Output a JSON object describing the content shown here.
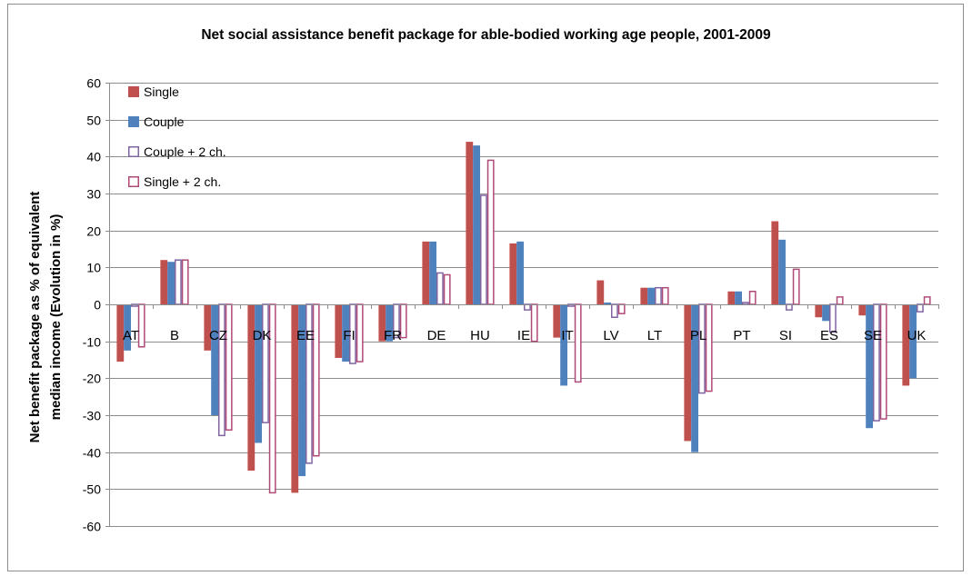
{
  "chart_data": {
    "type": "bar",
    "title": "Net social assistance benefit package for able-bodied working age people, 2001-2009",
    "ylabel_line1": "Net benefit package as % of equivalent",
    "ylabel_line2": "median income (Evolution in %)",
    "xlabel": "",
    "ylim": [
      -60,
      60
    ],
    "ytick_step": 10,
    "grid": true,
    "legend_position": "top-left",
    "categories": [
      "AT",
      "B",
      "CZ",
      "DK",
      "EE",
      "FI",
      "FR",
      "DE",
      "HU",
      "IE",
      "IT",
      "LV",
      "LT",
      "PL",
      "PT",
      "SI",
      "ES",
      "SE",
      "UK"
    ],
    "series": [
      {
        "name": "Single",
        "color": "#c0504d",
        "fill": "solid",
        "values": [
          -15.5,
          12,
          -12.5,
          -45,
          -51,
          -14.5,
          -10,
          17,
          44,
          16.5,
          -9,
          6.5,
          4.5,
          -37,
          3.5,
          22.5,
          -3.5,
          -3,
          -22
        ]
      },
      {
        "name": "Couple",
        "color": "#4f81bd",
        "fill": "solid",
        "values": [
          -12.5,
          11.5,
          -30,
          -37.5,
          -46.5,
          -15.5,
          -10,
          17,
          43,
          17,
          -22,
          0.5,
          4.5,
          -40,
          3.5,
          17.5,
          -4.5,
          -33.5,
          -20
        ]
      },
      {
        "name": "Couple + 2 ch.",
        "color": "#8064a2",
        "fill": "outline",
        "values": [
          -0.5,
          12,
          -35.5,
          -32,
          -43,
          -16,
          -9,
          8.5,
          29.5,
          -1.5,
          -0.5,
          -3.5,
          4.5,
          -24,
          0.5,
          -1.5,
          -7.5,
          -31.5,
          -2
        ]
      },
      {
        "name": "Single + 2 ch.",
        "color": "#b04a78",
        "fill": "outline",
        "values": [
          -11.5,
          12,
          -34,
          -51,
          -41,
          -15.5,
          -9,
          8,
          39,
          -10,
          -21,
          -2.5,
          4.5,
          -23.5,
          3.5,
          9.5,
          2,
          -31,
          2
        ]
      }
    ]
  }
}
